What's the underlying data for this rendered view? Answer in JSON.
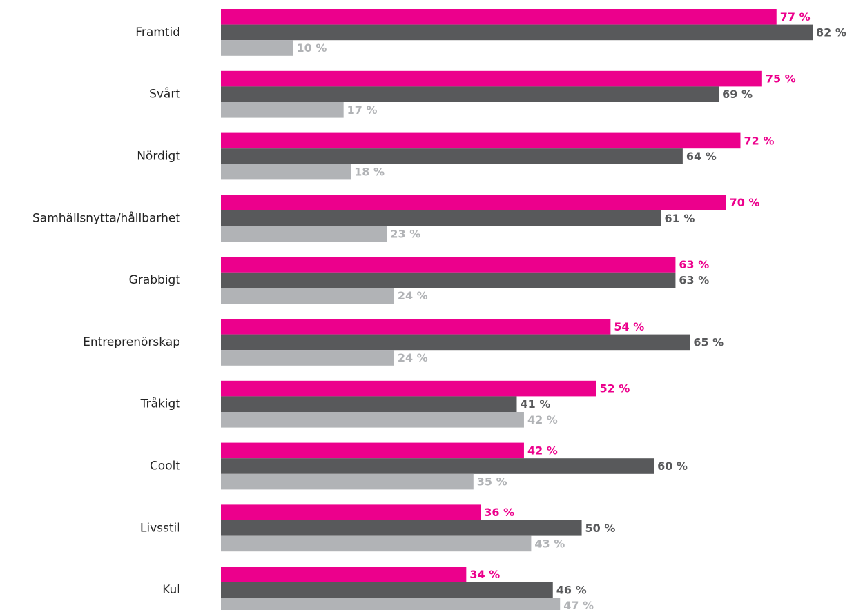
{
  "chart_data": {
    "type": "hbar",
    "categories": [
      "Framtid",
      "Svårt",
      "Nördigt",
      "Samhällsnytta/hållbarhet",
      "Grabbigt",
      "Entreprenörskap",
      "Tråkigt",
      "Coolt",
      "Livsstil",
      "Kul"
    ],
    "series": [
      {
        "color": "#ec008c",
        "values": [
          77,
          75,
          72,
          70,
          63,
          54,
          52,
          42,
          36,
          34
        ],
        "value_labels": [
          "77 %",
          "75 %",
          "72 %",
          "70 %",
          "63 %",
          "54 %",
          "52 %",
          "42 %",
          "36 %",
          "34 %"
        ]
      },
      {
        "color": "#58595b",
        "values": [
          82,
          69,
          64,
          61,
          63,
          65,
          41,
          60,
          50,
          46
        ],
        "value_labels": [
          "82 %",
          "69 %",
          "64 %",
          "61 %",
          "63 %",
          "65 %",
          "41 %",
          "60 %",
          "50 %",
          "46 %"
        ]
      },
      {
        "color": "#b1b3b6",
        "values": [
          10,
          17,
          18,
          23,
          24,
          24,
          42,
          35,
          43,
          47
        ],
        "value_labels": [
          "10 %",
          "17 %",
          "18 %",
          "23 %",
          "24 %",
          "24 %",
          "42 %",
          "35 %",
          "43 %",
          "47 %"
        ]
      }
    ]
  }
}
